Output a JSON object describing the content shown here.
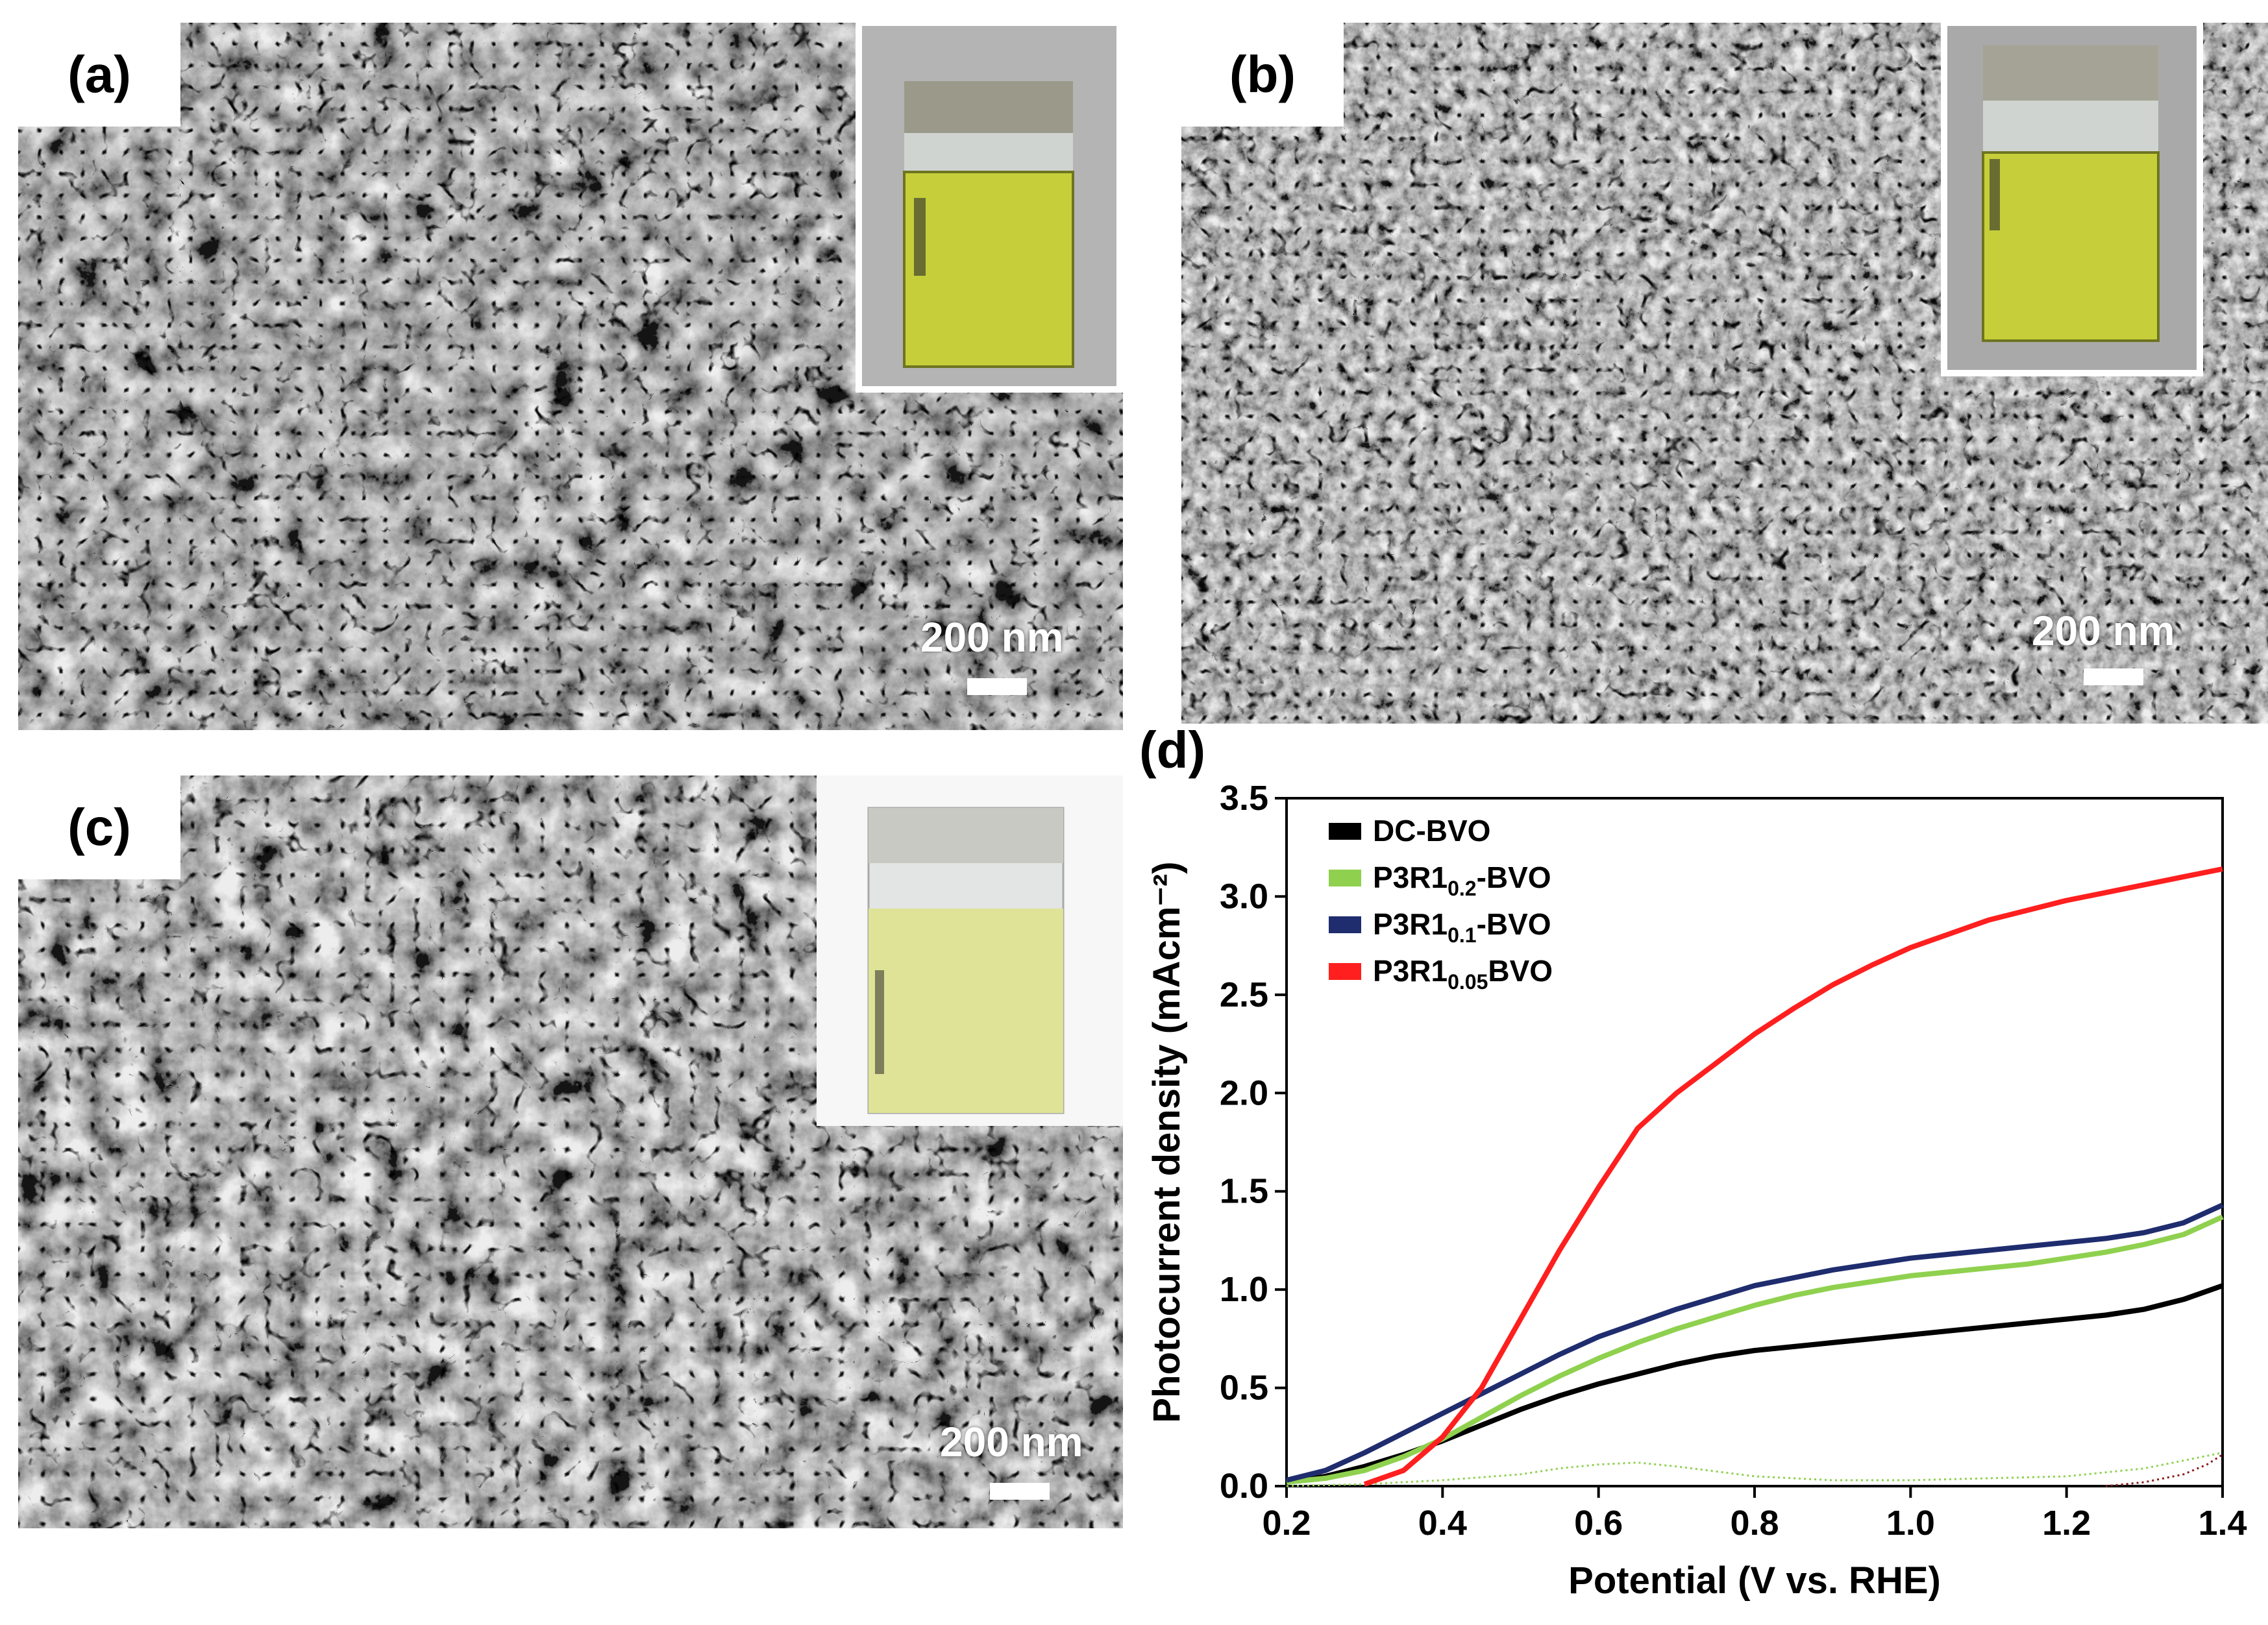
{
  "panels": {
    "a": {
      "label": "(a)",
      "scale": "200 nm"
    },
    "b": {
      "label": "(b)",
      "scale": "200 nm"
    },
    "c": {
      "label": "(c)",
      "scale": "200 nm"
    },
    "d": {
      "label": "(d)"
    }
  },
  "colors": {
    "sem_base": "#8d8d8d",
    "film_yellow": "#c6cf3a",
    "dc_bvo": "#000000",
    "p3r1_02": "#8fd14f",
    "p3r1_01": "#1f2d6e",
    "p3r1_005": "#ff1f1f"
  },
  "chart_data": {
    "type": "line",
    "xlabel": "Potential (V vs. RHE)",
    "ylabel": "Photocurrent density (mAcm⁻²)",
    "xlim": [
      0.2,
      1.4
    ],
    "ylim": [
      0.0,
      3.5
    ],
    "xticks": [
      "0.2",
      "0.4",
      "0.6",
      "0.8",
      "1.0",
      "1.2",
      "1.4"
    ],
    "yticks": [
      "0.0",
      "0.5",
      "1.0",
      "1.5",
      "2.0",
      "2.5",
      "3.0",
      "3.5"
    ],
    "legend_position": "top-left",
    "series": [
      {
        "name": "DC-BVO",
        "name_main": "DC-BVO",
        "name_sub": "",
        "name_tail": "",
        "color": "#000000",
        "x": [
          0.2,
          0.25,
          0.3,
          0.35,
          0.4,
          0.45,
          0.5,
          0.55,
          0.6,
          0.65,
          0.7,
          0.75,
          0.8,
          0.85,
          0.9,
          0.95,
          1.0,
          1.05,
          1.1,
          1.15,
          1.2,
          1.25,
          1.3,
          1.35,
          1.4
        ],
        "y": [
          0.02,
          0.05,
          0.1,
          0.16,
          0.23,
          0.31,
          0.39,
          0.46,
          0.52,
          0.57,
          0.62,
          0.66,
          0.69,
          0.71,
          0.73,
          0.75,
          0.77,
          0.79,
          0.81,
          0.83,
          0.85,
          0.87,
          0.9,
          0.95,
          1.02
        ]
      },
      {
        "name": "P3R1 0.2-BVO",
        "name_main": "P3R1",
        "name_sub": "0.2",
        "name_tail": "-BVO",
        "color": "#8fd14f",
        "x": [
          0.2,
          0.25,
          0.3,
          0.35,
          0.4,
          0.45,
          0.5,
          0.55,
          0.6,
          0.65,
          0.7,
          0.75,
          0.8,
          0.85,
          0.9,
          0.95,
          1.0,
          1.05,
          1.1,
          1.15,
          1.2,
          1.25,
          1.3,
          1.35,
          1.4
        ],
        "y": [
          0.02,
          0.04,
          0.08,
          0.15,
          0.24,
          0.35,
          0.46,
          0.56,
          0.65,
          0.73,
          0.8,
          0.86,
          0.92,
          0.97,
          1.01,
          1.04,
          1.07,
          1.09,
          1.11,
          1.13,
          1.16,
          1.19,
          1.23,
          1.28,
          1.37
        ]
      },
      {
        "name": "P3R1 0.1-BVO",
        "name_main": "P3R1",
        "name_sub": "0.1",
        "name_tail": "-BVO",
        "color": "#1f2d6e",
        "x": [
          0.2,
          0.25,
          0.3,
          0.35,
          0.4,
          0.45,
          0.5,
          0.55,
          0.6,
          0.65,
          0.7,
          0.75,
          0.8,
          0.85,
          0.9,
          0.95,
          1.0,
          1.05,
          1.1,
          1.15,
          1.2,
          1.25,
          1.3,
          1.35,
          1.4
        ],
        "y": [
          0.03,
          0.08,
          0.17,
          0.27,
          0.37,
          0.47,
          0.57,
          0.67,
          0.76,
          0.83,
          0.9,
          0.96,
          1.02,
          1.06,
          1.1,
          1.13,
          1.16,
          1.18,
          1.2,
          1.22,
          1.24,
          1.26,
          1.29,
          1.34,
          1.43
        ]
      },
      {
        "name": "P3R1 0.05BVO",
        "name_main": "P3R1",
        "name_sub": "0.05",
        "name_tail": "BVO",
        "color": "#ff1f1f",
        "x": [
          0.3,
          0.35,
          0.4,
          0.45,
          0.5,
          0.55,
          0.6,
          0.65,
          0.7,
          0.75,
          0.8,
          0.85,
          0.9,
          0.95,
          1.0,
          1.05,
          1.1,
          1.15,
          1.2,
          1.25,
          1.3,
          1.35,
          1.4
        ],
        "y": [
          0.01,
          0.08,
          0.25,
          0.5,
          0.85,
          1.2,
          1.52,
          1.82,
          2.0,
          2.15,
          2.3,
          2.43,
          2.55,
          2.65,
          2.74,
          2.81,
          2.88,
          2.93,
          2.98,
          3.02,
          3.06,
          3.1,
          3.14
        ]
      }
    ],
    "dark_current": [
      {
        "color": "#8fd14f",
        "x": [
          0.2,
          0.3,
          0.4,
          0.5,
          0.55,
          0.6,
          0.65,
          0.7,
          0.8,
          0.9,
          1.0,
          1.1,
          1.2,
          1.3,
          1.4
        ],
        "y": [
          0.0,
          0.01,
          0.03,
          0.06,
          0.09,
          0.11,
          0.12,
          0.1,
          0.05,
          0.03,
          0.03,
          0.04,
          0.05,
          0.09,
          0.17
        ]
      },
      {
        "color": "#8b1a1a",
        "x": [
          1.25,
          1.3,
          1.35,
          1.38,
          1.4
        ],
        "y": [
          0.0,
          0.02,
          0.06,
          0.11,
          0.16
        ]
      }
    ]
  }
}
